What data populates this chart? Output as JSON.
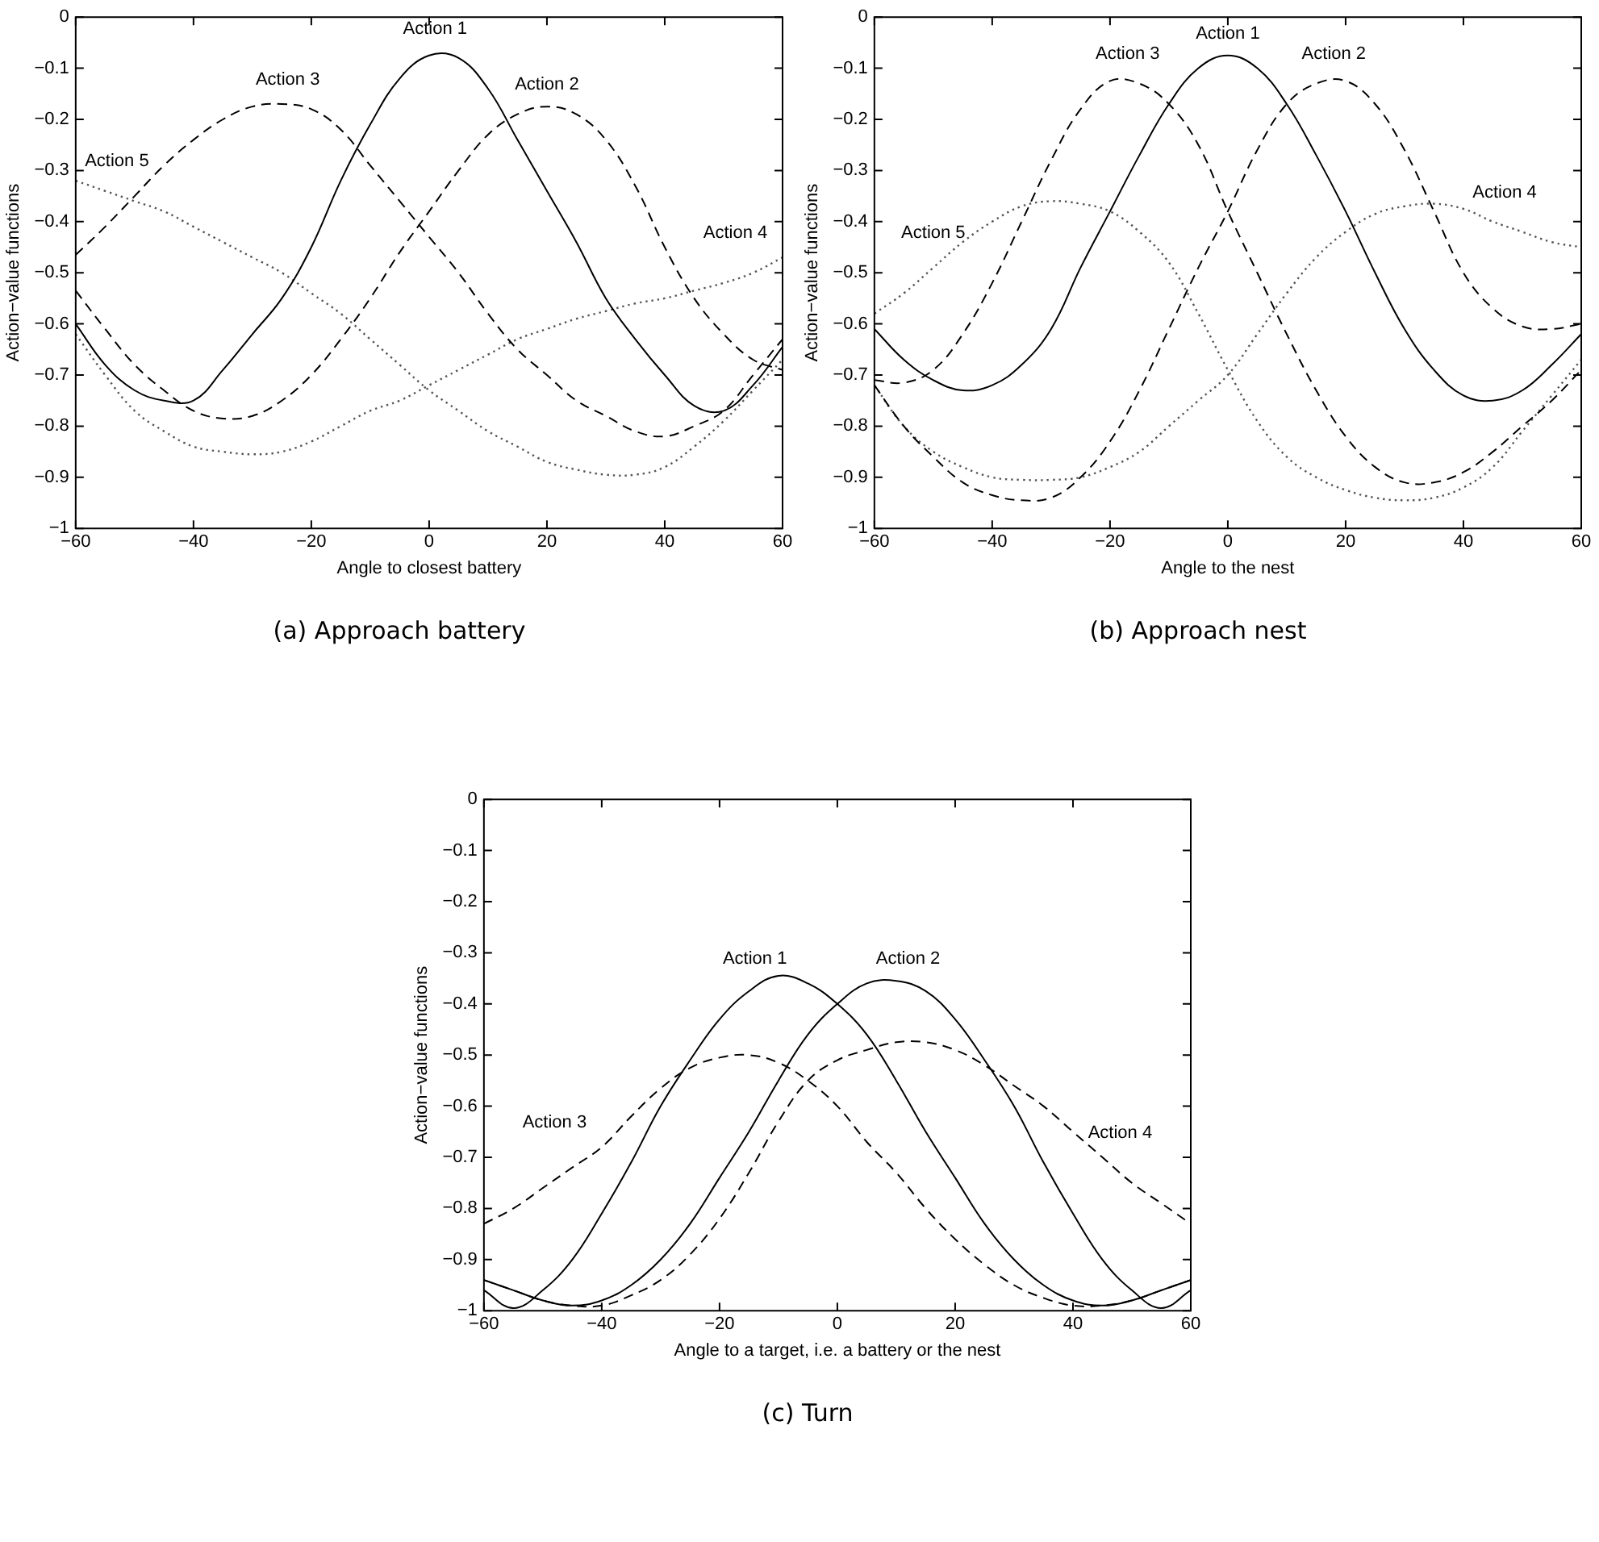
{
  "chart_data": [
    {
      "type": "line",
      "title": "(a) Approach battery",
      "xlabel": "Angle to closest battery",
      "ylabel": "Action−value functions",
      "xlim": [
        -60,
        60
      ],
      "xticks": [
        -60,
        -40,
        -20,
        0,
        20,
        40,
        60
      ],
      "ylim": [
        -1,
        0
      ],
      "yticks": [
        -1,
        -0.9,
        -0.8,
        -0.7,
        -0.6,
        -0.5,
        -0.4,
        -0.3,
        -0.2,
        -0.1,
        0
      ],
      "x": [
        -60,
        -55,
        -50,
        -45,
        -40,
        -35,
        -30,
        -25,
        -20,
        -15,
        -10,
        -5,
        0,
        5,
        10,
        15,
        20,
        25,
        30,
        35,
        40,
        45,
        50,
        55,
        60
      ],
      "series": [
        {
          "color": "#000000",
          "line_style": "solid",
          "values": [
            -0.6,
            -0.68,
            -0.73,
            -0.75,
            -0.75,
            -0.69,
            -0.62,
            -0.55,
            -0.45,
            -0.32,
            -0.21,
            -0.12,
            -0.075,
            -0.08,
            -0.14,
            -0.24,
            -0.34,
            -0.44,
            -0.55,
            -0.63,
            -0.7,
            -0.76,
            -0.77,
            -0.72,
            -0.645
          ]
        },
        {
          "color": "#000000",
          "line_style": "dashed",
          "values": [
            -0.535,
            -0.61,
            -0.68,
            -0.73,
            -0.77,
            -0.785,
            -0.78,
            -0.75,
            -0.7,
            -0.63,
            -0.55,
            -0.46,
            -0.38,
            -0.3,
            -0.23,
            -0.19,
            -0.175,
            -0.19,
            -0.24,
            -0.33,
            -0.45,
            -0.55,
            -0.62,
            -0.67,
            -0.69
          ]
        },
        {
          "color": "#000000",
          "line_style": "dashed",
          "values": [
            -0.465,
            -0.41,
            -0.35,
            -0.29,
            -0.24,
            -0.2,
            -0.175,
            -0.17,
            -0.18,
            -0.22,
            -0.29,
            -0.36,
            -0.43,
            -0.5,
            -0.58,
            -0.65,
            -0.7,
            -0.75,
            -0.78,
            -0.81,
            -0.82,
            -0.8,
            -0.77,
            -0.7,
            -0.63
          ]
        },
        {
          "color": "#555555",
          "line_style": "dotted",
          "values": [
            -0.62,
            -0.7,
            -0.77,
            -0.81,
            -0.84,
            -0.85,
            -0.855,
            -0.85,
            -0.83,
            -0.8,
            -0.77,
            -0.75,
            -0.72,
            -0.69,
            -0.66,
            -0.63,
            -0.61,
            -0.59,
            -0.575,
            -0.56,
            -0.55,
            -0.535,
            -0.52,
            -0.5,
            -0.47
          ]
        },
        {
          "color": "#555555",
          "line_style": "dotted",
          "values": [
            -0.32,
            -0.34,
            -0.36,
            -0.38,
            -0.41,
            -0.44,
            -0.47,
            -0.5,
            -0.54,
            -0.58,
            -0.63,
            -0.68,
            -0.73,
            -0.77,
            -0.81,
            -0.84,
            -0.87,
            -0.885,
            -0.895,
            -0.895,
            -0.88,
            -0.84,
            -0.79,
            -0.73,
            -0.67
          ]
        }
      ],
      "annotations": [
        "Action 1",
        "Action 3",
        "Action 2",
        "Action 5",
        "Action 4"
      ]
    },
    {
      "type": "line",
      "title": "(b) Approach nest",
      "xlabel": "Angle to the nest",
      "ylabel": "Action−value functions",
      "xlim": [
        -60,
        60
      ],
      "xticks": [
        -60,
        -40,
        -20,
        0,
        20,
        40,
        60
      ],
      "ylim": [
        -1,
        0
      ],
      "yticks": [
        -1,
        -0.9,
        -0.8,
        -0.7,
        -0.6,
        -0.5,
        -0.4,
        -0.3,
        -0.2,
        -0.1,
        0
      ],
      "x": [
        -60,
        -55,
        -50,
        -45,
        -40,
        -35,
        -30,
        -25,
        -20,
        -15,
        -10,
        -5,
        0,
        5,
        10,
        15,
        20,
        25,
        30,
        35,
        40,
        45,
        50,
        55,
        60
      ],
      "series": [
        {
          "color": "#000000",
          "line_style": "solid",
          "values": [
            -0.61,
            -0.67,
            -0.71,
            -0.73,
            -0.72,
            -0.68,
            -0.61,
            -0.49,
            -0.38,
            -0.27,
            -0.17,
            -0.1,
            -0.075,
            -0.1,
            -0.17,
            -0.27,
            -0.38,
            -0.5,
            -0.61,
            -0.69,
            -0.74,
            -0.75,
            -0.73,
            -0.68,
            -0.62
          ]
        },
        {
          "color": "#000000",
          "line_style": "dashed",
          "values": [
            -0.72,
            -0.8,
            -0.86,
            -0.91,
            -0.935,
            -0.945,
            -0.94,
            -0.9,
            -0.83,
            -0.73,
            -0.61,
            -0.49,
            -0.38,
            -0.26,
            -0.17,
            -0.13,
            -0.125,
            -0.17,
            -0.26,
            -0.38,
            -0.5,
            -0.57,
            -0.605,
            -0.61,
            -0.6
          ]
        },
        {
          "color": "#000000",
          "line_style": "dashed",
          "values": [
            -0.71,
            -0.715,
            -0.69,
            -0.62,
            -0.52,
            -0.4,
            -0.28,
            -0.18,
            -0.125,
            -0.13,
            -0.17,
            -0.25,
            -0.38,
            -0.5,
            -0.62,
            -0.73,
            -0.82,
            -0.88,
            -0.91,
            -0.91,
            -0.89,
            -0.85,
            -0.8,
            -0.75,
            -0.69
          ]
        },
        {
          "color": "#555555",
          "line_style": "dotted",
          "values": [
            -0.72,
            -0.8,
            -0.85,
            -0.88,
            -0.9,
            -0.905,
            -0.905,
            -0.9,
            -0.88,
            -0.85,
            -0.8,
            -0.75,
            -0.7,
            -0.62,
            -0.54,
            -0.47,
            -0.42,
            -0.385,
            -0.37,
            -0.365,
            -0.375,
            -0.4,
            -0.42,
            -0.44,
            -0.45
          ]
        },
        {
          "color": "#555555",
          "line_style": "dotted",
          "values": [
            -0.58,
            -0.54,
            -0.49,
            -0.44,
            -0.4,
            -0.37,
            -0.36,
            -0.365,
            -0.38,
            -0.42,
            -0.48,
            -0.58,
            -0.69,
            -0.79,
            -0.86,
            -0.9,
            -0.925,
            -0.94,
            -0.945,
            -0.94,
            -0.92,
            -0.88,
            -0.81,
            -0.74,
            -0.67
          ]
        }
      ],
      "annotations": [
        "Action 1",
        "Action 3",
        "Action 2",
        "Action 5",
        "Action 4"
      ]
    },
    {
      "type": "line",
      "title": "(c) Turn",
      "xlabel": "Angle to a target, i.e. a battery or the nest",
      "ylabel": "Action−value functions",
      "xlim": [
        -60,
        60
      ],
      "xticks": [
        -60,
        -40,
        -20,
        0,
        20,
        40,
        60
      ],
      "ylim": [
        -1,
        0
      ],
      "yticks": [
        -1,
        -0.9,
        -0.8,
        -0.7,
        -0.6,
        -0.5,
        -0.4,
        -0.3,
        -0.2,
        -0.1,
        0
      ],
      "x": [
        -60,
        -55,
        -50,
        -45,
        -40,
        -35,
        -30,
        -25,
        -20,
        -15,
        -10,
        -5,
        0,
        5,
        10,
        15,
        20,
        25,
        30,
        35,
        40,
        45,
        50,
        55,
        60
      ],
      "series": [
        {
          "color": "#000000",
          "line_style": "solid",
          "values": [
            -0.96,
            -0.995,
            -0.96,
            -0.9,
            -0.81,
            -0.71,
            -0.6,
            -0.51,
            -0.43,
            -0.375,
            -0.345,
            -0.36,
            -0.4,
            -0.46,
            -0.55,
            -0.65,
            -0.74,
            -0.83,
            -0.9,
            -0.95,
            -0.98,
            -0.99,
            -0.98,
            -0.96,
            -0.94
          ]
        },
        {
          "color": "#000000",
          "line_style": "solid",
          "values": [
            -0.94,
            -0.96,
            -0.98,
            -0.99,
            -0.98,
            -0.95,
            -0.9,
            -0.83,
            -0.74,
            -0.65,
            -0.55,
            -0.46,
            -0.4,
            -0.36,
            -0.355,
            -0.375,
            -0.43,
            -0.51,
            -0.6,
            -0.71,
            -0.81,
            -0.9,
            -0.96,
            -0.995,
            -0.96
          ]
        },
        {
          "color": "#000000",
          "line_style": "dashed",
          "values": [
            -0.83,
            -0.8,
            -0.76,
            -0.72,
            -0.68,
            -0.62,
            -0.565,
            -0.525,
            -0.505,
            -0.5,
            -0.515,
            -0.55,
            -0.6,
            -0.67,
            -0.73,
            -0.8,
            -0.86,
            -0.91,
            -0.95,
            -0.975,
            -0.99,
            -0.99,
            -0.98,
            -0.96,
            -0.94
          ]
        },
        {
          "color": "#000000",
          "line_style": "dashed",
          "values": [
            -0.94,
            -0.96,
            -0.98,
            -0.99,
            -0.99,
            -0.97,
            -0.94,
            -0.89,
            -0.82,
            -0.73,
            -0.63,
            -0.55,
            -0.51,
            -0.49,
            -0.475,
            -0.475,
            -0.49,
            -0.52,
            -0.56,
            -0.6,
            -0.65,
            -0.7,
            -0.75,
            -0.79,
            -0.83
          ]
        }
      ],
      "annotations": [
        "Action 1",
        "Action 2",
        "Action 3",
        "Action 4"
      ]
    }
  ]
}
